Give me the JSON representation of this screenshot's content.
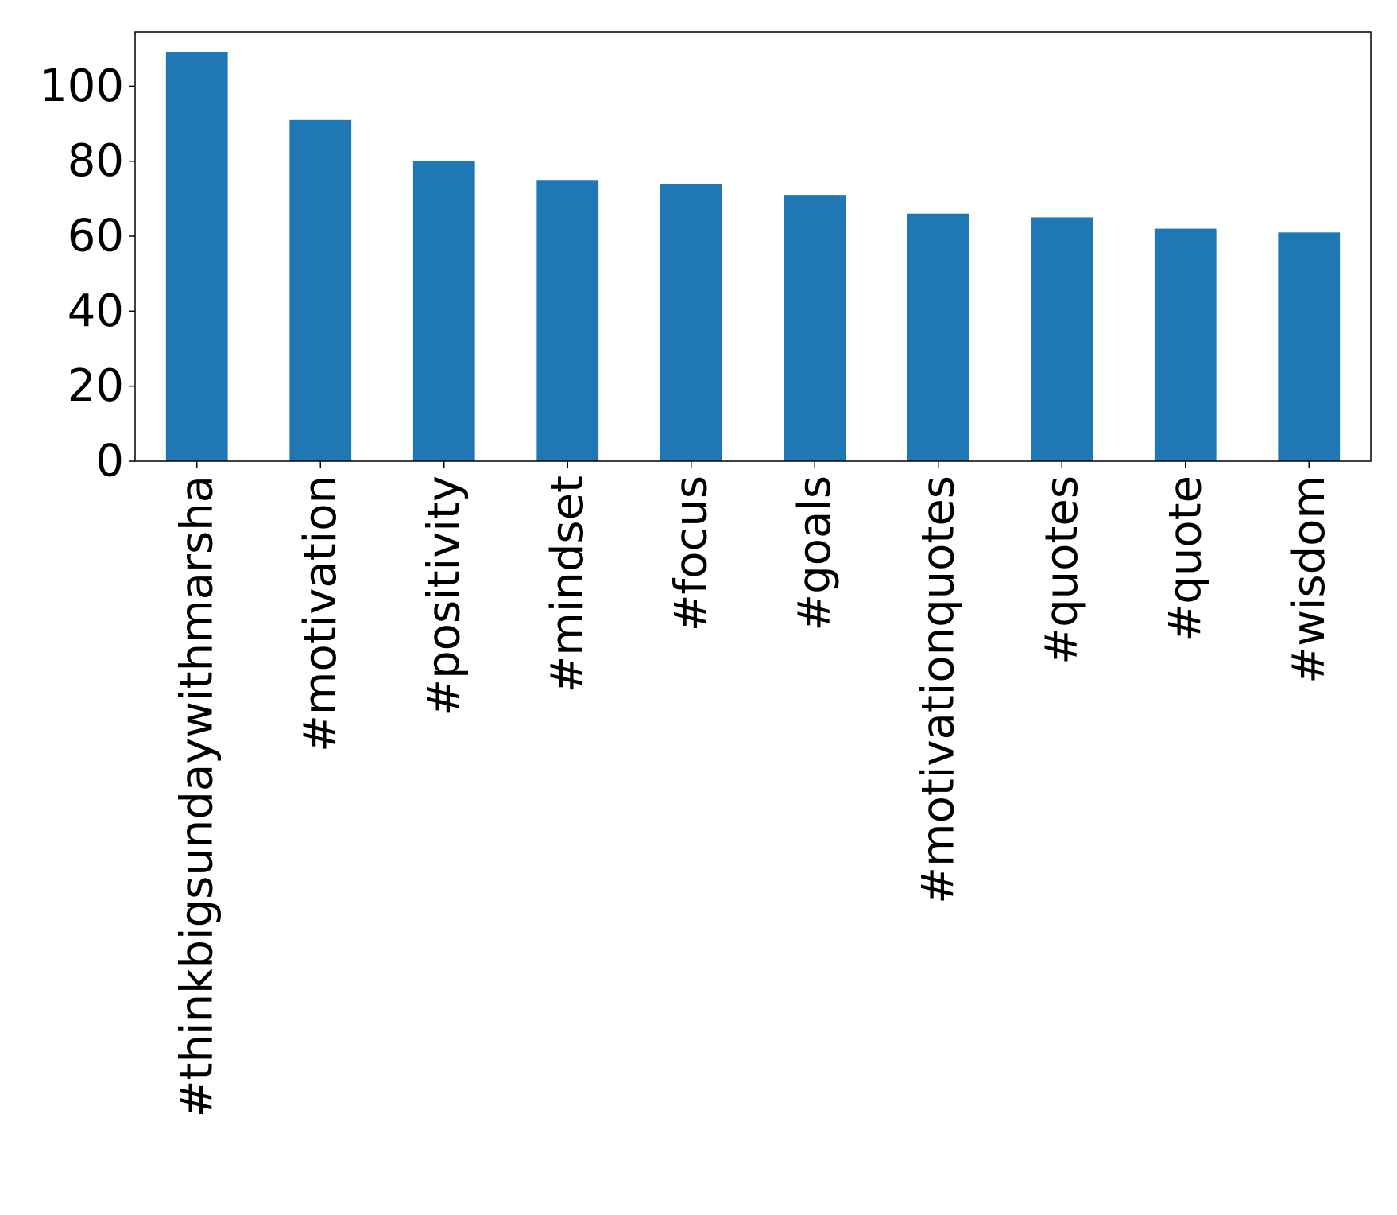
{
  "chart_data": {
    "type": "bar",
    "title": "",
    "xlabel": "",
    "ylabel": "",
    "categories": [
      "#thinkbigsundaywithmarsha",
      "#motivation",
      "#positivity",
      "#mindset",
      "#focus",
      "#goals",
      "#motivationquotes",
      "#quotes",
      "#quote",
      "#wisdom"
    ],
    "values": [
      109,
      91,
      80,
      75,
      74,
      71,
      66,
      65,
      62,
      61
    ],
    "ylim": [
      0,
      114.5
    ],
    "yticks": [
      0,
      20,
      40,
      60,
      80,
      100
    ],
    "ytick_labels": [
      "0",
      "20",
      "40",
      "60",
      "80",
      "100"
    ],
    "grid": false,
    "legend": "none",
    "colors": {
      "bar": "#1f77b4",
      "axes": "#000000",
      "background": "#ffffff"
    }
  }
}
